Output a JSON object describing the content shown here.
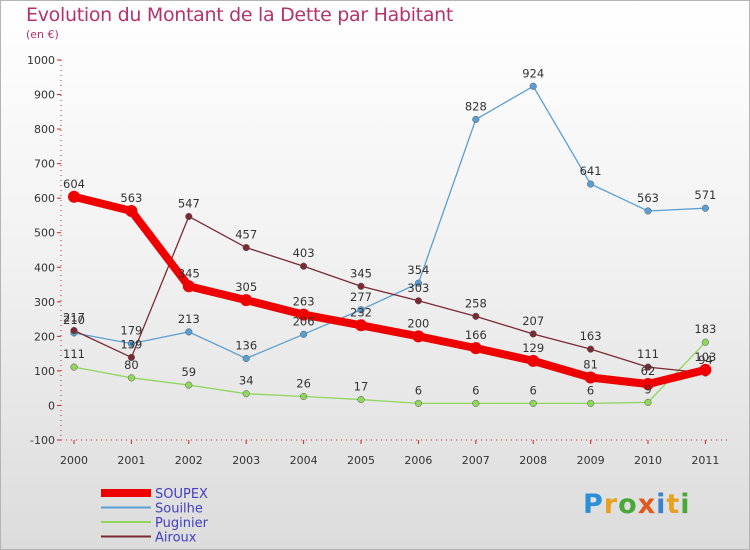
{
  "title": "Evolution du Montant de la Dette par Habitant",
  "subtitle": "(en €)",
  "logo_text": "Proxiti",
  "chart_data": {
    "type": "line",
    "title": "Evolution du Montant de la Dette par Habitant",
    "subtitle": "(en €)",
    "xlabel": "",
    "ylabel": "",
    "ylim": [
      -100,
      1000
    ],
    "yticks": [
      -100,
      0,
      100,
      200,
      300,
      400,
      500,
      600,
      700,
      800,
      900,
      1000
    ],
    "categories": [
      "2000",
      "2001",
      "2002",
      "2003",
      "2004",
      "2005",
      "2006",
      "2007",
      "2008",
      "2009",
      "2010",
      "2011"
    ],
    "grid": false,
    "legend_position": "bottom-left",
    "series": [
      {
        "name": "SOUPEX",
        "color": "#ee0000",
        "emphasis": true,
        "values": [
          604,
          563,
          345,
          305,
          263,
          232,
          200,
          166,
          129,
          81,
          62,
          103
        ]
      },
      {
        "name": "Souilhe",
        "color": "#5a9fd4",
        "values": [
          210,
          179,
          213,
          136,
          206,
          277,
          354,
          828,
          924,
          641,
          563,
          571
        ]
      },
      {
        "name": "Puginier",
        "color": "#8fd65a",
        "values": [
          111,
          80,
          59,
          34,
          26,
          17,
          6,
          6,
          6,
          6,
          9,
          183
        ]
      },
      {
        "name": "Airoux",
        "color": "#7a2a32",
        "values": [
          217,
          139,
          547,
          457,
          403,
          345,
          303,
          258,
          207,
          163,
          111,
          94
        ]
      }
    ]
  }
}
